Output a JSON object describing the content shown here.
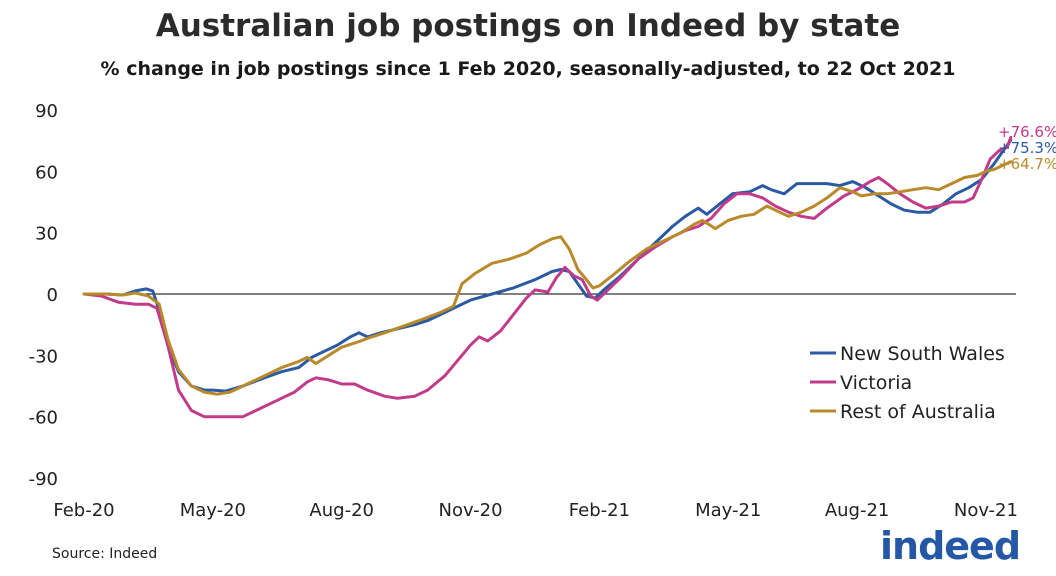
{
  "chart_data": {
    "type": "line",
    "title": "Australian job postings on Indeed by state",
    "subtitle": "% change in job postings since 1 Feb 2020, seasonally-adjusted, to 22 Oct 2021",
    "xlabel": "",
    "ylabel": "",
    "ylim": [
      -90,
      90
    ],
    "yticks": [
      "90",
      "60",
      "30",
      "0",
      "-30",
      "-60",
      "-90"
    ],
    "ytick_values": [
      90,
      60,
      30,
      0,
      -30,
      -60,
      -90
    ],
    "xticks": [
      "Feb-20",
      "May-20",
      "Aug-20",
      "Nov-20",
      "Feb-21",
      "May-21",
      "Aug-21",
      "Nov-21"
    ],
    "xtick_months": [
      0,
      3,
      6,
      9,
      12,
      15,
      18,
      21
    ],
    "x_range_months": [
      0,
      21.7
    ],
    "legend_position": "right",
    "series": [
      {
        "name": "New South Wales",
        "color": "#2a5aa3",
        "end_label": "+75.3%",
        "points": [
          [
            0,
            0
          ],
          [
            0.5,
            0
          ],
          [
            0.9,
            -0.5
          ],
          [
            1.2,
            1.5
          ],
          [
            1.45,
            2.5
          ],
          [
            1.6,
            1.5
          ],
          [
            1.75,
            -8
          ],
          [
            1.95,
            -25
          ],
          [
            2.2,
            -38
          ],
          [
            2.5,
            -45
          ],
          [
            2.8,
            -47
          ],
          [
            3.0,
            -47
          ],
          [
            3.3,
            -47.5
          ],
          [
            3.7,
            -45
          ],
          [
            4.2,
            -41
          ],
          [
            4.6,
            -38
          ],
          [
            5.0,
            -36
          ],
          [
            5.3,
            -31
          ],
          [
            5.6,
            -28
          ],
          [
            5.9,
            -25
          ],
          [
            6.2,
            -21
          ],
          [
            6.4,
            -19
          ],
          [
            6.6,
            -21
          ],
          [
            6.9,
            -19
          ],
          [
            7.3,
            -17
          ],
          [
            7.7,
            -15
          ],
          [
            8.0,
            -13
          ],
          [
            8.5,
            -8
          ],
          [
            9.0,
            -3
          ],
          [
            9.5,
            0
          ],
          [
            10.0,
            3
          ],
          [
            10.5,
            7
          ],
          [
            10.9,
            11
          ],
          [
            11.1,
            12
          ],
          [
            11.3,
            11
          ],
          [
            11.5,
            5
          ],
          [
            11.7,
            -1
          ],
          [
            11.9,
            -2
          ],
          [
            12.1,
            2
          ],
          [
            12.5,
            9
          ],
          [
            12.9,
            17
          ],
          [
            13.3,
            25
          ],
          [
            13.7,
            33
          ],
          [
            14.0,
            38
          ],
          [
            14.3,
            42
          ],
          [
            14.5,
            39
          ],
          [
            14.8,
            44
          ],
          [
            15.1,
            49
          ],
          [
            15.5,
            50
          ],
          [
            15.8,
            53
          ],
          [
            16.0,
            51
          ],
          [
            16.3,
            49
          ],
          [
            16.6,
            54
          ],
          [
            17.0,
            54
          ],
          [
            17.3,
            54
          ],
          [
            17.6,
            53
          ],
          [
            17.9,
            55
          ],
          [
            18.2,
            52
          ],
          [
            18.5,
            48
          ],
          [
            18.8,
            44
          ],
          [
            19.1,
            41
          ],
          [
            19.4,
            40
          ],
          [
            19.7,
            40
          ],
          [
            20.0,
            44
          ],
          [
            20.3,
            49
          ],
          [
            20.6,
            52
          ],
          [
            20.9,
            56
          ],
          [
            21.2,
            64
          ],
          [
            21.4,
            70
          ],
          [
            21.58,
            75.3
          ]
        ]
      },
      {
        "name": "Victoria",
        "color": "#c23b8a",
        "end_label": "+76.6%",
        "points": [
          [
            0,
            0
          ],
          [
            0.4,
            -1
          ],
          [
            0.8,
            -4
          ],
          [
            1.2,
            -5
          ],
          [
            1.5,
            -5
          ],
          [
            1.7,
            -7
          ],
          [
            1.95,
            -25
          ],
          [
            2.2,
            -47
          ],
          [
            2.5,
            -57
          ],
          [
            2.8,
            -60
          ],
          [
            3.1,
            -60
          ],
          [
            3.4,
            -60
          ],
          [
            3.7,
            -60
          ],
          [
            4.1,
            -56
          ],
          [
            4.5,
            -52
          ],
          [
            4.9,
            -48
          ],
          [
            5.2,
            -43
          ],
          [
            5.4,
            -41
          ],
          [
            5.7,
            -42
          ],
          [
            6.0,
            -44
          ],
          [
            6.3,
            -44
          ],
          [
            6.6,
            -47
          ],
          [
            7.0,
            -50
          ],
          [
            7.3,
            -51
          ],
          [
            7.7,
            -50
          ],
          [
            8.0,
            -47
          ],
          [
            8.4,
            -40
          ],
          [
            8.8,
            -30
          ],
          [
            9.0,
            -25
          ],
          [
            9.2,
            -21
          ],
          [
            9.4,
            -23
          ],
          [
            9.7,
            -18
          ],
          [
            10.0,
            -10
          ],
          [
            10.3,
            -2
          ],
          [
            10.5,
            2
          ],
          [
            10.8,
            1
          ],
          [
            11.0,
            8
          ],
          [
            11.2,
            13
          ],
          [
            11.4,
            9
          ],
          [
            11.6,
            7
          ],
          [
            11.8,
            -1
          ],
          [
            11.95,
            -3
          ],
          [
            12.2,
            2
          ],
          [
            12.5,
            8
          ],
          [
            12.9,
            17
          ],
          [
            13.3,
            23
          ],
          [
            13.7,
            28
          ],
          [
            14.0,
            31
          ],
          [
            14.3,
            33
          ],
          [
            14.6,
            37
          ],
          [
            14.9,
            44
          ],
          [
            15.2,
            49
          ],
          [
            15.5,
            49
          ],
          [
            15.8,
            47
          ],
          [
            16.1,
            43
          ],
          [
            16.4,
            40
          ],
          [
            16.7,
            38
          ],
          [
            17.0,
            37
          ],
          [
            17.3,
            42
          ],
          [
            17.7,
            48
          ],
          [
            18.0,
            51
          ],
          [
            18.3,
            55
          ],
          [
            18.5,
            57
          ],
          [
            18.7,
            54
          ],
          [
            19.0,
            49
          ],
          [
            19.3,
            45
          ],
          [
            19.6,
            42
          ],
          [
            19.9,
            43
          ],
          [
            20.2,
            45
          ],
          [
            20.5,
            45
          ],
          [
            20.7,
            47
          ],
          [
            20.9,
            56
          ],
          [
            21.1,
            66
          ],
          [
            21.3,
            70
          ],
          [
            21.5,
            72
          ],
          [
            21.58,
            76.6
          ]
        ]
      },
      {
        "name": "Rest of Australia",
        "color": "#b98a2a",
        "end_label": "+64.7%",
        "points": [
          [
            0,
            0
          ],
          [
            0.5,
            0
          ],
          [
            0.9,
            -0.5
          ],
          [
            1.2,
            0.5
          ],
          [
            1.5,
            -1
          ],
          [
            1.75,
            -5
          ],
          [
            1.95,
            -22
          ],
          [
            2.2,
            -37
          ],
          [
            2.5,
            -45
          ],
          [
            2.8,
            -48
          ],
          [
            3.1,
            -49
          ],
          [
            3.4,
            -48
          ],
          [
            3.8,
            -44
          ],
          [
            4.2,
            -40
          ],
          [
            4.6,
            -36
          ],
          [
            5.0,
            -33
          ],
          [
            5.2,
            -31
          ],
          [
            5.4,
            -34
          ],
          [
            5.7,
            -30
          ],
          [
            6.0,
            -26
          ],
          [
            6.3,
            -24
          ],
          [
            6.7,
            -21
          ],
          [
            7.0,
            -19
          ],
          [
            7.4,
            -16
          ],
          [
            7.8,
            -13
          ],
          [
            8.3,
            -9
          ],
          [
            8.6,
            -6
          ],
          [
            8.8,
            5
          ],
          [
            9.1,
            10
          ],
          [
            9.5,
            15
          ],
          [
            9.9,
            17
          ],
          [
            10.3,
            20
          ],
          [
            10.6,
            24
          ],
          [
            10.9,
            27
          ],
          [
            11.1,
            28
          ],
          [
            11.3,
            22
          ],
          [
            11.5,
            12
          ],
          [
            11.7,
            7
          ],
          [
            11.85,
            3
          ],
          [
            12.0,
            4
          ],
          [
            12.3,
            9
          ],
          [
            12.7,
            16
          ],
          [
            13.1,
            22
          ],
          [
            13.5,
            26
          ],
          [
            13.9,
            30
          ],
          [
            14.2,
            34
          ],
          [
            14.4,
            36
          ],
          [
            14.7,
            32
          ],
          [
            15.0,
            36
          ],
          [
            15.3,
            38
          ],
          [
            15.6,
            39
          ],
          [
            15.9,
            43
          ],
          [
            16.1,
            41
          ],
          [
            16.4,
            38
          ],
          [
            16.7,
            40
          ],
          [
            17.0,
            43
          ],
          [
            17.3,
            47
          ],
          [
            17.6,
            52
          ],
          [
            17.9,
            50
          ],
          [
            18.1,
            48
          ],
          [
            18.4,
            49
          ],
          [
            18.7,
            49
          ],
          [
            19.0,
            50
          ],
          [
            19.3,
            51
          ],
          [
            19.6,
            52
          ],
          [
            19.9,
            51
          ],
          [
            20.2,
            54
          ],
          [
            20.5,
            57
          ],
          [
            20.8,
            58
          ],
          [
            21.0,
            60
          ],
          [
            21.2,
            61
          ],
          [
            21.4,
            63
          ],
          [
            21.58,
            64.7
          ]
        ]
      }
    ]
  },
  "footer": {
    "source": "Source: Indeed",
    "logo_text": "indeed"
  }
}
